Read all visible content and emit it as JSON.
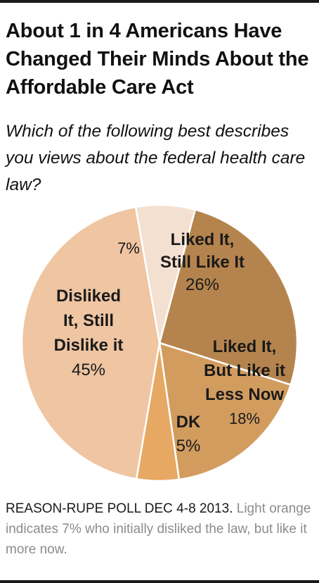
{
  "title": "About 1 in 4 Americans Have Changed Their Minds About the Affordable Care Act",
  "subtitle": "Which of the following best describes you views about the federal health care law?",
  "chart_data": {
    "type": "pie",
    "slices": [
      {
        "label": [
          "Liked It,",
          "Still Like It"
        ],
        "value": 26,
        "display": "26%",
        "color": "#b5844e"
      },
      {
        "label": [
          "Liked It,",
          "But Like it",
          "Less Now"
        ],
        "value": 18,
        "display": "18%",
        "color": "#d29c5f"
      },
      {
        "label": [
          "DK"
        ],
        "value": 5,
        "display": "5%",
        "color": "#e6a863"
      },
      {
        "label": [
          "Disliked",
          "It, Still",
          "Dislike it"
        ],
        "value": 45,
        "display": "45%",
        "color": "#efc5a2"
      },
      {
        "label": [],
        "value": 7,
        "display": "7%",
        "color": "#f4e0d0"
      }
    ]
  },
  "note": {
    "source": "REASON-RUPE POLL DEC 4-8 2013.",
    "text": "Light orange indicates 7% who initially disliked the law, but like it more now."
  }
}
